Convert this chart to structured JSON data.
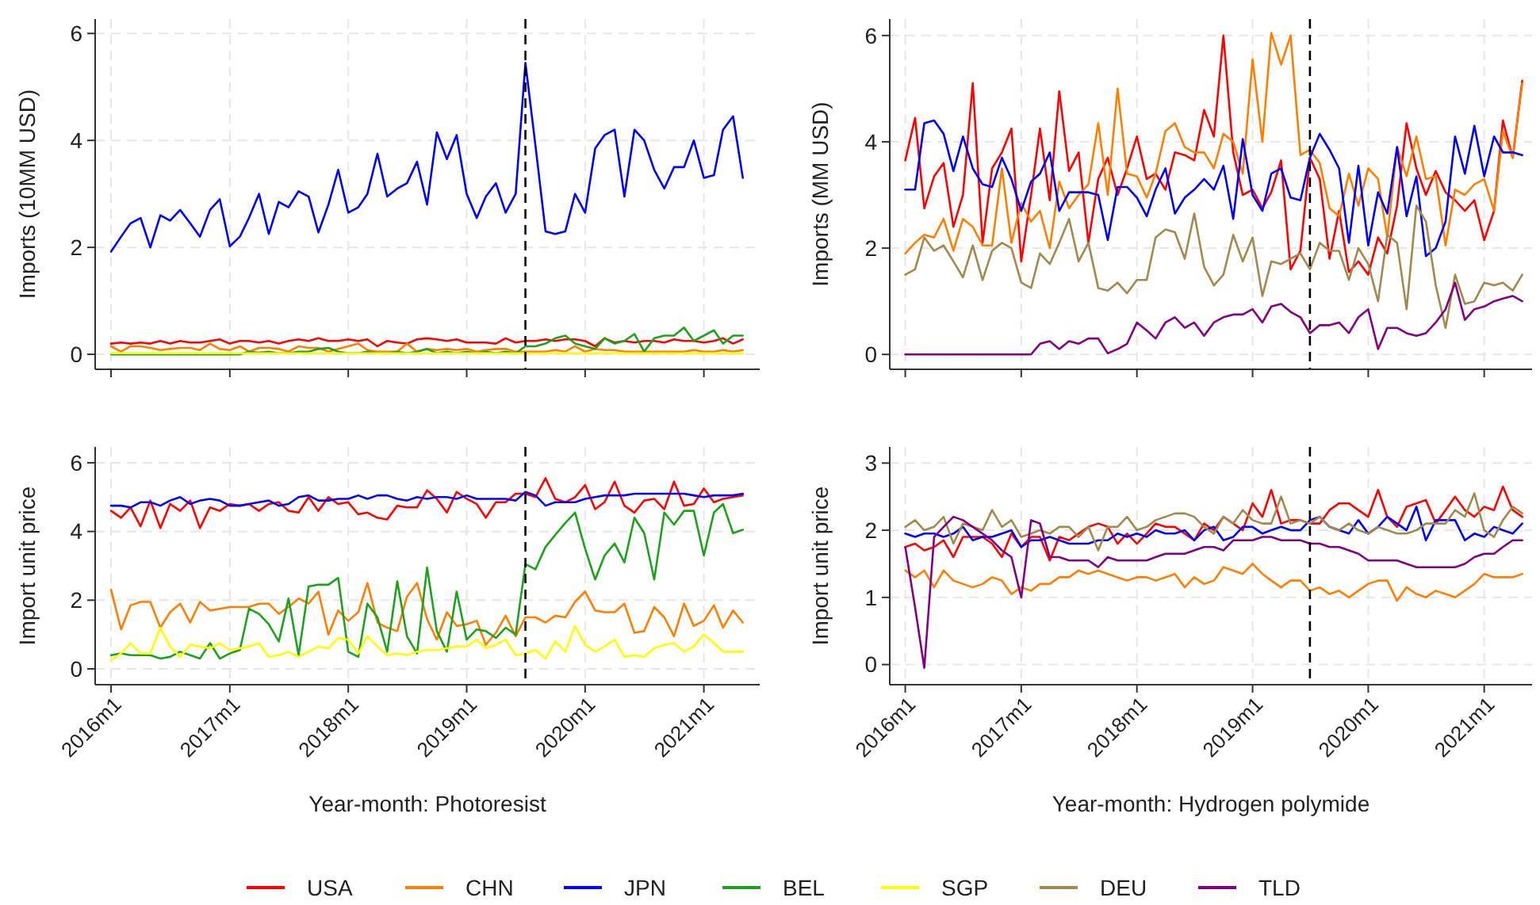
{
  "chart_data": [
    {
      "type": "line",
      "ylabel": "Imports (10MM USD)",
      "tick_labels": "y",
      "grid": true,
      "legend": "bottom",
      "line_style": "solid",
      "x": [
        "2016-01",
        "2016-02",
        "2016-03",
        "2016-04",
        "2016-05",
        "2016-06",
        "2016-07",
        "2016-08",
        "2016-09",
        "2016-10",
        "2016-11",
        "2016-12",
        "2017-01",
        "2017-02",
        "2017-03",
        "2017-04",
        "2017-05",
        "2017-06",
        "2017-07",
        "2017-08",
        "2017-09",
        "2017-10",
        "2017-11",
        "2017-12",
        "2018-01",
        "2018-02",
        "2018-03",
        "2018-04",
        "2018-05",
        "2018-06",
        "2018-07",
        "2018-08",
        "2018-09",
        "2018-10",
        "2018-11",
        "2018-12",
        "2019-01",
        "2019-02",
        "2019-03",
        "2019-04",
        "2019-05",
        "2019-06",
        "2019-07",
        "2019-08",
        "2019-09",
        "2019-10",
        "2019-11",
        "2019-12",
        "2020-01",
        "2020-02",
        "2020-03",
        "2020-04",
        "2020-05",
        "2020-06",
        "2020-07",
        "2020-08",
        "2020-09",
        "2020-10",
        "2020-11",
        "2020-12",
        "2021-01",
        "2021-02",
        "2021-03",
        "2021-04",
        "2021-05"
      ],
      "xlim": [
        "2015-11-13",
        "2021-06-22"
      ],
      "xticks": [
        "2016-01",
        "2017-01",
        "2018-01",
        "2019-01",
        "2020-01",
        "2021-01"
      ],
      "ylim": [
        -0.28,
        6.27
      ],
      "yticks": [
        0,
        2,
        4,
        6
      ],
      "ref_lines": [
        {
          "axis": "x",
          "value": "2019-07",
          "color": "#000000",
          "line_style": "dashed"
        }
      ],
      "series": [
        {
          "name": "USA",
          "color": "#ff0000",
          "values": [
            0.2,
            0.22,
            0.2,
            0.22,
            0.2,
            0.25,
            0.2,
            0.25,
            0.22,
            0.22,
            0.25,
            0.28,
            0.2,
            0.25,
            0.25,
            0.22,
            0.25,
            0.2,
            0.25,
            0.28,
            0.25,
            0.3,
            0.25,
            0.25,
            0.28,
            0.25,
            0.28,
            0.15,
            0.25,
            0.22,
            0.2,
            0.28,
            0.3,
            0.28,
            0.25,
            0.28,
            0.22,
            0.22,
            0.22,
            0.2,
            0.3,
            0.22,
            0.25,
            0.25,
            0.28,
            0.25,
            0.28,
            0.28,
            0.25,
            0.15,
            0.3,
            0.22,
            0.25,
            0.22,
            0.25,
            0.25,
            0.22,
            0.28,
            0.25,
            0.25,
            0.22,
            0.25,
            0.3,
            0.2,
            0.28
          ]
        },
        {
          "name": "CHN",
          "color": "#ff7f00",
          "values": [
            0.15,
            0.05,
            0.15,
            0.15,
            0.12,
            0.08,
            0.1,
            0.12,
            0.12,
            0.08,
            0.2,
            0.1,
            0.08,
            0.15,
            0.05,
            0.12,
            0.12,
            0.1,
            0.05,
            0.15,
            0.12,
            0.12,
            0.05,
            0.1,
            0.15,
            0.2,
            0.08,
            0.05,
            0.05,
            0.05,
            0.2,
            0.05,
            0.1,
            0.08,
            0.1,
            0.08,
            0.1,
            0.05,
            0.08,
            0.1,
            0.1,
            0.05,
            0.05,
            0.05,
            0.05,
            0.08,
            0.05,
            0.15,
            0.05,
            0.1,
            0.08,
            0.08,
            0.05,
            0.05,
            0.05,
            0.05,
            0.05,
            0.05,
            0.05,
            0.08,
            0.05,
            0.05,
            0.08,
            0.05,
            0.08
          ]
        },
        {
          "name": "JPN",
          "color": "#0000ff",
          "values": [
            1.92,
            2.2,
            2.45,
            2.55,
            2.0,
            2.6,
            2.5,
            2.7,
            2.45,
            2.2,
            2.7,
            2.9,
            2.02,
            2.2,
            2.55,
            3.0,
            2.25,
            2.85,
            2.75,
            3.05,
            2.95,
            2.28,
            2.8,
            3.45,
            2.65,
            2.75,
            3.0,
            3.75,
            2.95,
            3.1,
            3.2,
            3.6,
            2.8,
            4.15,
            3.65,
            4.1,
            3.0,
            2.55,
            2.95,
            3.2,
            2.65,
            3.0,
            5.45,
            3.9,
            2.3,
            2.25,
            2.3,
            3.0,
            2.65,
            3.85,
            4.1,
            4.2,
            2.95,
            4.2,
            4.0,
            3.45,
            3.1,
            3.5,
            3.5,
            4.0,
            3.3,
            3.35,
            4.2,
            4.45,
            3.3
          ]
        },
        {
          "name": "BEL",
          "color": "#1fa01f",
          "values": [
            0,
            0,
            0,
            0,
            0,
            0,
            0,
            0,
            0,
            0,
            0,
            0,
            0,
            0,
            0.05,
            0.03,
            0.05,
            0.02,
            0.02,
            0.05,
            0.05,
            0.1,
            0.12,
            0.05,
            0.02,
            0.02,
            0.05,
            0.02,
            0.02,
            0.05,
            0.02,
            0.05,
            0.1,
            0.02,
            0.05,
            0.02,
            0.05,
            0.02,
            0.05,
            0.02,
            0.05,
            0.02,
            0.15,
            0.15,
            0.2,
            0.3,
            0.35,
            0.2,
            0.15,
            0.1,
            0.3,
            0.2,
            0.25,
            0.38,
            0.05,
            0.3,
            0.35,
            0.35,
            0.5,
            0.25,
            0.35,
            0.45,
            0.2,
            0.35,
            0.35
          ]
        },
        {
          "name": "SGP",
          "color": "#ffff00",
          "values": [
            0.02,
            0.02,
            0.02,
            0.02,
            0.02,
            0.02,
            0.02,
            0.02,
            0.02,
            0.02,
            0.02,
            0.02,
            0.02,
            0.02,
            0.02,
            0.02,
            0.02,
            0.02,
            0.02,
            0.02,
            0.02,
            0.02,
            0.02,
            0.02,
            0.02,
            0.02,
            0.02,
            0.02,
            0.02,
            0.02,
            0.02,
            0.02,
            0.02,
            0.02,
            0.02,
            0.02,
            0.02,
            0.02,
            0.02,
            0.02,
            0.02,
            0.02,
            0.02,
            0.02,
            0.02,
            0.02,
            0.02,
            0.02,
            0.02,
            0.02,
            0.02,
            0.02,
            0.02,
            0.02,
            0.02,
            0.02,
            0.02,
            0.02,
            0.02,
            0.02,
            0.02,
            0.02,
            0.02,
            0.02,
            0.02
          ]
        }
      ]
    },
    {
      "type": "line",
      "ylabel": "Imports (MM USD)",
      "tick_labels": "y",
      "grid": true,
      "legend": "bottom",
      "line_style": "solid",
      "x": [
        "2016-01",
        "2016-02",
        "2016-03",
        "2016-04",
        "2016-05",
        "2016-06",
        "2016-07",
        "2016-08",
        "2016-09",
        "2016-10",
        "2016-11",
        "2016-12",
        "2017-01",
        "2017-02",
        "2017-03",
        "2017-04",
        "2017-05",
        "2017-06",
        "2017-07",
        "2017-08",
        "2017-09",
        "2017-10",
        "2017-11",
        "2017-12",
        "2018-01",
        "2018-02",
        "2018-03",
        "2018-04",
        "2018-05",
        "2018-06",
        "2018-07",
        "2018-08",
        "2018-09",
        "2018-10",
        "2018-11",
        "2018-12",
        "2019-01",
        "2019-02",
        "2019-03",
        "2019-04",
        "2019-05",
        "2019-06",
        "2019-07",
        "2019-08",
        "2019-09",
        "2019-10",
        "2019-11",
        "2019-12",
        "2020-01",
        "2020-02",
        "2020-03",
        "2020-04",
        "2020-05",
        "2020-06",
        "2020-07",
        "2020-08",
        "2020-09",
        "2020-10",
        "2020-11",
        "2020-12",
        "2021-01",
        "2021-02",
        "2021-03",
        "2021-04",
        "2021-05"
      ],
      "xlim": [
        "2015-11-13",
        "2021-06-01"
      ],
      "xticks": [
        "2016-01",
        "2017-01",
        "2018-01",
        "2019-01",
        "2020-01",
        "2021-01"
      ],
      "ylim": [
        -0.28,
        6.31
      ],
      "yticks": [
        0,
        2,
        4,
        6
      ],
      "ref_lines": [
        {
          "axis": "x",
          "value": "2019-07",
          "color": "#000000",
          "line_style": "dashed"
        }
      ],
      "series": [
        {
          "color": "#ff0000",
          "values": [
            3.65,
            4.45,
            2.75,
            3.35,
            3.6,
            2.4,
            3.0,
            5.1,
            2.1,
            3.5,
            3.8,
            4.25,
            1.75,
            3.0,
            4.25,
            2.9,
            4.95,
            3.45,
            3.8,
            2.1,
            3.3,
            3.7,
            3.0,
            3.5,
            4.1,
            3.3,
            3.4,
            3.1,
            3.8,
            3.75,
            3.65,
            4.6,
            4.1,
            6.0,
            3.8,
            3.0,
            3.1,
            2.75,
            3.05,
            3.65,
            1.6,
            1.95,
            3.7,
            3.3,
            1.8,
            2.7,
            1.55,
            1.75,
            1.5,
            2.2,
            1.9,
            2.8,
            4.35,
            3.5,
            3.0,
            3.45,
            3.05,
            2.9,
            2.7,
            2.9,
            2.15,
            2.7,
            4.4,
            3.7,
            5.15
          ]
        },
        {
          "color": "#ff7f00",
          "values": [
            1.9,
            2.1,
            2.25,
            2.2,
            2.55,
            1.95,
            2.55,
            2.4,
            2.05,
            2.05,
            3.5,
            2.1,
            2.85,
            2.5,
            2.7,
            2.0,
            3.25,
            2.75,
            3.0,
            3.2,
            4.35,
            3.0,
            5.0,
            3.4,
            3.35,
            2.95,
            3.4,
            4.2,
            4.35,
            3.9,
            3.8,
            3.8,
            3.5,
            4.15,
            4.0,
            3.4,
            5.55,
            4.0,
            6.05,
            5.45,
            6.0,
            3.75,
            3.85,
            3.6,
            2.75,
            2.6,
            3.4,
            2.8,
            3.5,
            3.3,
            2.2,
            3.9,
            3.35,
            4.1,
            3.3,
            3.35,
            2.05,
            3.1,
            3.0,
            3.2,
            3.3,
            2.7,
            4.2,
            3.7,
            5.1
          ]
        },
        {
          "color": "#0000ff",
          "values": [
            3.1,
            3.1,
            4.35,
            4.4,
            4.15,
            3.45,
            4.1,
            3.5,
            3.2,
            3.15,
            3.7,
            3.3,
            2.7,
            3.25,
            3.4,
            3.8,
            2.7,
            3.05,
            3.05,
            3.05,
            3.0,
            2.15,
            3.15,
            3.15,
            2.95,
            2.6,
            3.1,
            3.5,
            2.65,
            2.95,
            3.1,
            3.3,
            3.1,
            3.55,
            2.55,
            4.05,
            3.0,
            2.7,
            3.4,
            3.5,
            2.95,
            2.9,
            3.7,
            4.15,
            3.85,
            3.5,
            2.1,
            3.55,
            2.05,
            3.05,
            2.65,
            3.9,
            2.6,
            3.35,
            1.85,
            2.0,
            2.5,
            4.1,
            3.4,
            4.3,
            3.35,
            4.1,
            3.8,
            3.8,
            3.75
          ]
        },
        {
          "name": "DEU",
          "color": "#a08a50",
          "values": [
            1.5,
            1.6,
            2.2,
            1.95,
            2.05,
            1.75,
            1.45,
            2.05,
            1.4,
            1.95,
            2.1,
            2.0,
            1.35,
            1.25,
            1.9,
            1.7,
            2.1,
            2.55,
            1.75,
            2.1,
            1.25,
            1.2,
            1.35,
            1.15,
            1.4,
            1.4,
            2.2,
            2.35,
            2.3,
            1.8,
            2.65,
            1.65,
            1.3,
            1.5,
            2.25,
            1.75,
            2.2,
            1.1,
            1.75,
            1.7,
            1.8,
            1.9,
            1.6,
            2.1,
            1.95,
            1.95,
            1.4,
            2.0,
            1.7,
            1.0,
            2.25,
            2.1,
            0.85,
            2.8,
            2.5,
            1.3,
            0.5,
            1.5,
            0.95,
            1.0,
            1.35,
            1.3,
            1.35,
            1.2,
            1.5
          ]
        },
        {
          "name": "TLD",
          "color": "#800080",
          "values": [
            0,
            0,
            0,
            0,
            0,
            0,
            0,
            0,
            0,
            0,
            0,
            0,
            0,
            0,
            0.2,
            0.25,
            0.1,
            0.25,
            0.2,
            0.3,
            0.3,
            0.02,
            0.1,
            0.2,
            0.6,
            0.45,
            0.3,
            0.6,
            0.7,
            0.5,
            0.6,
            0.35,
            0.6,
            0.7,
            0.75,
            0.75,
            0.85,
            0.6,
            0.9,
            0.95,
            0.8,
            0.7,
            0.4,
            0.55,
            0.55,
            0.6,
            0.4,
            0.7,
            0.85,
            0.1,
            0.5,
            0.5,
            0.4,
            0.35,
            0.4,
            0.6,
            0.85,
            1.35,
            0.65,
            0.85,
            0.9,
            1.0,
            1.05,
            1.1,
            1.0
          ]
        }
      ]
    },
    {
      "type": "line",
      "ylabel": "Import unit price",
      "xlabel": "Year-month: Photoresist",
      "grid": true,
      "line_style": "solid",
      "x": [
        "2016-01",
        "2016-02",
        "2016-03",
        "2016-04",
        "2016-05",
        "2016-06",
        "2016-07",
        "2016-08",
        "2016-09",
        "2016-10",
        "2016-11",
        "2016-12",
        "2017-01",
        "2017-02",
        "2017-03",
        "2017-04",
        "2017-05",
        "2017-06",
        "2017-07",
        "2017-08",
        "2017-09",
        "2017-10",
        "2017-11",
        "2017-12",
        "2018-01",
        "2018-02",
        "2018-03",
        "2018-04",
        "2018-05",
        "2018-06",
        "2018-07",
        "2018-08",
        "2018-09",
        "2018-10",
        "2018-11",
        "2018-12",
        "2019-01",
        "2019-02",
        "2019-03",
        "2019-04",
        "2019-05",
        "2019-06",
        "2019-07",
        "2019-08",
        "2019-09",
        "2019-10",
        "2019-11",
        "2019-12",
        "2020-01",
        "2020-02",
        "2020-03",
        "2020-04",
        "2020-05",
        "2020-06",
        "2020-07",
        "2020-08",
        "2020-09",
        "2020-10",
        "2020-11",
        "2020-12",
        "2021-01",
        "2021-02",
        "2021-03",
        "2021-04",
        "2021-05"
      ],
      "xlim": [
        "2015-11-13",
        "2021-06-22"
      ],
      "xticks": [
        {
          "value": "2016-01",
          "label": "2016m1"
        },
        {
          "value": "2017-01",
          "label": "2017m1"
        },
        {
          "value": "2018-01",
          "label": "2018m1"
        },
        {
          "value": "2019-01",
          "label": "2019m1"
        },
        {
          "value": "2020-01",
          "label": "2020m1"
        },
        {
          "value": "2021-01",
          "label": "2021m1"
        }
      ],
      "ylim": [
        -0.46,
        6.46
      ],
      "yticks": [
        0,
        2,
        4,
        6
      ],
      "ref_lines": [
        {
          "axis": "x",
          "value": "2019-07",
          "color": "#000000",
          "line_style": "dashed"
        }
      ],
      "series": [
        {
          "color": "#ff0000",
          "values": [
            4.6,
            4.4,
            4.7,
            4.15,
            4.9,
            4.1,
            4.8,
            4.6,
            4.9,
            4.1,
            4.7,
            4.6,
            4.8,
            4.75,
            4.8,
            4.6,
            4.8,
            4.85,
            4.6,
            4.55,
            5.0,
            4.6,
            5.0,
            4.8,
            4.85,
            4.5,
            4.55,
            4.4,
            4.35,
            4.75,
            4.7,
            4.7,
            5.2,
            4.95,
            4.55,
            5.15,
            4.95,
            4.8,
            4.4,
            4.85,
            4.85,
            5.1,
            5.1,
            5.0,
            5.55,
            4.95,
            4.85,
            5.0,
            5.35,
            4.65,
            4.85,
            5.45,
            4.75,
            4.55,
            4.9,
            4.95,
            4.65,
            5.45,
            4.75,
            4.8,
            5.25,
            4.85,
            4.95,
            5.0,
            5.05
          ]
        },
        {
          "color": "#ff7f00",
          "values": [
            2.3,
            1.15,
            1.85,
            1.95,
            1.95,
            1.2,
            1.65,
            1.9,
            1.35,
            1.95,
            1.7,
            1.75,
            1.8,
            1.8,
            1.8,
            1.9,
            1.9,
            1.6,
            1.8,
            2.05,
            1.9,
            2.25,
            1.0,
            1.7,
            1.4,
            1.65,
            2.5,
            1.35,
            1.2,
            1.1,
            2.1,
            2.5,
            1.45,
            0.85,
            1.65,
            1.25,
            1.3,
            1.4,
            0.7,
            1.05,
            1.55,
            0.95,
            1.5,
            1.5,
            1.35,
            1.55,
            1.5,
            1.95,
            2.25,
            1.7,
            1.65,
            1.65,
            1.9,
            1.05,
            1.1,
            1.8,
            1.5,
            0.95,
            1.9,
            1.25,
            1.4,
            1.85,
            1.2,
            1.7,
            1.35
          ]
        },
        {
          "color": "#0000ff",
          "values": [
            4.75,
            4.75,
            4.7,
            4.85,
            4.85,
            4.75,
            4.9,
            5.0,
            4.8,
            4.9,
            4.95,
            4.9,
            4.75,
            4.75,
            4.8,
            4.85,
            4.9,
            4.75,
            4.8,
            5.0,
            5.05,
            4.9,
            4.9,
            4.95,
            4.95,
            5.05,
            4.95,
            5.05,
            5.05,
            4.95,
            4.9,
            5.0,
            4.95,
            5.0,
            5.0,
            4.95,
            5.05,
            4.95,
            4.95,
            4.95,
            4.95,
            4.9,
            5.15,
            5.05,
            4.75,
            4.85,
            4.85,
            4.85,
            4.95,
            5.0,
            5.05,
            5.05,
            5.05,
            5.1,
            5.1,
            5.1,
            5.1,
            5.1,
            5.1,
            5.05,
            5.0,
            5.05,
            5.05,
            5.05,
            5.1
          ]
        },
        {
          "color": "#1fa01f",
          "values": [
            0.4,
            0.45,
            0.4,
            0.4,
            0.4,
            0.3,
            0.35,
            0.5,
            0.4,
            0.3,
            0.75,
            0.3,
            0.45,
            0.55,
            1.75,
            1.6,
            1.3,
            0.8,
            2.05,
            0.4,
            2.4,
            2.45,
            2.45,
            2.65,
            0.5,
            0.35,
            1.9,
            1.5,
            0.5,
            2.55,
            0.95,
            0.45,
            2.95,
            1.1,
            0.5,
            2.25,
            0.85,
            1.15,
            1.1,
            0.9,
            1.2,
            1.0,
            3.05,
            2.9,
            3.55,
            3.9,
            4.25,
            4.55,
            3.5,
            2.6,
            3.3,
            3.65,
            3.1,
            4.4,
            3.95,
            2.6,
            4.55,
            4.2,
            4.6,
            4.6,
            3.3,
            4.55,
            4.8,
            3.95,
            4.05
          ]
        },
        {
          "color": "#ffff00",
          "values": [
            0.25,
            0.45,
            0.75,
            0.45,
            0.45,
            1.2,
            0.65,
            0.35,
            0.7,
            0.65,
            0.6,
            0.75,
            0.55,
            0.6,
            0.65,
            0.75,
            0.35,
            0.4,
            0.5,
            0.35,
            0.5,
            0.65,
            0.6,
            0.9,
            0.85,
            0.45,
            0.95,
            0.65,
            0.4,
            0.45,
            0.4,
            0.5,
            0.55,
            0.55,
            0.6,
            0.65,
            0.65,
            0.85,
            0.6,
            0.7,
            0.85,
            0.4,
            0.45,
            0.55,
            0.3,
            0.8,
            0.5,
            1.25,
            0.7,
            0.5,
            0.65,
            0.85,
            0.35,
            0.4,
            0.35,
            0.6,
            0.7,
            0.75,
            0.5,
            0.65,
            1.0,
            0.75,
            0.5,
            0.5,
            0.5
          ]
        }
      ]
    },
    {
      "type": "line",
      "ylabel": "Import unit price",
      "xlabel": "Year-month: Hydrogen polymide",
      "grid": true,
      "line_style": "solid",
      "x": [
        "2016-01",
        "2016-02",
        "2016-03",
        "2016-04",
        "2016-05",
        "2016-06",
        "2016-07",
        "2016-08",
        "2016-09",
        "2016-10",
        "2016-11",
        "2016-12",
        "2017-01",
        "2017-02",
        "2017-03",
        "2017-04",
        "2017-05",
        "2017-06",
        "2017-07",
        "2017-08",
        "2017-09",
        "2017-10",
        "2017-11",
        "2017-12",
        "2018-01",
        "2018-02",
        "2018-03",
        "2018-04",
        "2018-05",
        "2018-06",
        "2018-07",
        "2018-08",
        "2018-09",
        "2018-10",
        "2018-11",
        "2018-12",
        "2019-01",
        "2019-02",
        "2019-03",
        "2019-04",
        "2019-05",
        "2019-06",
        "2019-07",
        "2019-08",
        "2019-09",
        "2019-10",
        "2019-11",
        "2019-12",
        "2020-01",
        "2020-02",
        "2020-03",
        "2020-04",
        "2020-05",
        "2020-06",
        "2020-07",
        "2020-08",
        "2020-09",
        "2020-10",
        "2020-11",
        "2020-12",
        "2021-01",
        "2021-02",
        "2021-03",
        "2021-04",
        "2021-05"
      ],
      "xlim": [
        "2015-11-13",
        "2021-06-01"
      ],
      "xticks": [
        {
          "value": "2016-01",
          "label": "2016m1"
        },
        {
          "value": "2017-01",
          "label": "2017m1"
        },
        {
          "value": "2018-01",
          "label": "2018m1"
        },
        {
          "value": "2019-01",
          "label": "2019m1"
        },
        {
          "value": "2020-01",
          "label": "2020m1"
        },
        {
          "value": "2021-01",
          "label": "2021m1"
        }
      ],
      "ylim": [
        -0.3,
        3.24
      ],
      "yticks": [
        0,
        1,
        2,
        3
      ],
      "ref_lines": [
        {
          "axis": "x",
          "value": "2019-07",
          "color": "#000000",
          "line_style": "dashed"
        }
      ],
      "series": [
        {
          "color": "#ff0000",
          "values": [
            1.75,
            1.8,
            1.7,
            1.75,
            1.85,
            1.6,
            1.9,
            1.9,
            1.9,
            1.8,
            1.6,
            1.95,
            1.75,
            1.9,
            1.9,
            1.55,
            1.9,
            1.85,
            1.95,
            2.05,
            2.1,
            2.05,
            1.8,
            1.95,
            1.8,
            1.95,
            2.1,
            2.05,
            2.05,
            1.95,
            1.85,
            2.1,
            2.0,
            2.2,
            2.1,
            2.0,
            2.4,
            2.2,
            2.6,
            2.1,
            2.15,
            2.15,
            2.1,
            2.1,
            2.3,
            2.4,
            2.4,
            2.3,
            2.2,
            2.6,
            2.2,
            2.05,
            2.35,
            2.4,
            2.45,
            2.1,
            2.3,
            2.5,
            2.3,
            2.2,
            2.35,
            2.3,
            2.65,
            2.3,
            2.2
          ]
        },
        {
          "color": "#ff7f00",
          "values": [
            1.4,
            1.3,
            1.4,
            1.15,
            1.4,
            1.25,
            1.2,
            1.15,
            1.2,
            1.3,
            1.25,
            1.05,
            1.15,
            1.1,
            1.2,
            1.2,
            1.3,
            1.3,
            1.4,
            1.35,
            1.4,
            1.35,
            1.3,
            1.25,
            1.3,
            1.3,
            1.25,
            1.3,
            1.35,
            1.15,
            1.3,
            1.2,
            1.25,
            1.45,
            1.4,
            1.35,
            1.5,
            1.35,
            1.25,
            1.15,
            1.25,
            1.25,
            1.1,
            1.15,
            1.05,
            1.1,
            1.0,
            1.1,
            1.2,
            1.25,
            1.25,
            0.95,
            1.15,
            1.05,
            1.0,
            1.1,
            1.05,
            1.0,
            1.1,
            1.2,
            1.35,
            1.3,
            1.3,
            1.3,
            1.35
          ]
        },
        {
          "color": "#0000ff",
          "values": [
            1.95,
            1.9,
            1.95,
            1.95,
            1.9,
            1.95,
            2.05,
            1.85,
            1.9,
            1.9,
            1.95,
            2.0,
            1.75,
            1.85,
            1.85,
            1.9,
            1.85,
            1.8,
            1.8,
            1.8,
            1.85,
            1.85,
            1.95,
            1.9,
            1.95,
            1.9,
            2.0,
            1.95,
            1.95,
            2.0,
            1.85,
            2.0,
            2.05,
            1.85,
            1.9,
            2.05,
            2.05,
            1.95,
            2.0,
            2.05,
            2.0,
            2.0,
            2.15,
            2.2,
            2.05,
            2.0,
            1.95,
            2.15,
            1.95,
            2.05,
            2.2,
            2.1,
            2.0,
            2.35,
            1.85,
            2.15,
            2.15,
            2.15,
            1.85,
            1.95,
            1.9,
            2.05,
            2.0,
            1.95,
            2.1
          ]
        },
        {
          "color": "#a08a50",
          "values": [
            2.05,
            2.15,
            2.0,
            2.05,
            2.2,
            1.8,
            2.1,
            2.05,
            2.0,
            2.3,
            2.05,
            2.15,
            1.9,
            1.95,
            2.0,
            1.95,
            2.05,
            2.05,
            1.9,
            2.05,
            1.7,
            2.05,
            2.05,
            2.2,
            2.0,
            2.05,
            2.15,
            2.2,
            2.25,
            2.25,
            2.2,
            2.05,
            1.95,
            2.2,
            2.1,
            2.3,
            2.15,
            2.1,
            2.1,
            2.5,
            2.1,
            2.15,
            2.1,
            2.2,
            2.05,
            2.0,
            2.1,
            2.0,
            1.95,
            2.05,
            2.0,
            1.95,
            1.95,
            2.0,
            2.1,
            2.1,
            2.1,
            2.3,
            2.2,
            2.55,
            2.0,
            1.9,
            2.15,
            2.35,
            2.25
          ]
        },
        {
          "color": "#800080",
          "values": [
            1.75,
            0.85,
            -0.05,
            1.9,
            2.05,
            2.2,
            2.15,
            2.05,
            1.95,
            1.85,
            1.7,
            1.6,
            1.0,
            2.15,
            2.1,
            1.6,
            1.6,
            1.55,
            1.55,
            1.55,
            1.45,
            1.6,
            1.55,
            1.55,
            1.55,
            1.55,
            1.6,
            1.65,
            1.65,
            1.65,
            1.7,
            1.75,
            1.75,
            1.7,
            1.85,
            1.85,
            1.85,
            1.9,
            1.9,
            1.85,
            1.85,
            1.85,
            1.8,
            1.8,
            1.75,
            1.75,
            1.7,
            1.65,
            1.55,
            1.55,
            1.55,
            1.55,
            1.5,
            1.45,
            1.45,
            1.45,
            1.45,
            1.45,
            1.5,
            1.6,
            1.65,
            1.65,
            1.75,
            1.85,
            1.85
          ]
        }
      ]
    }
  ]
}
